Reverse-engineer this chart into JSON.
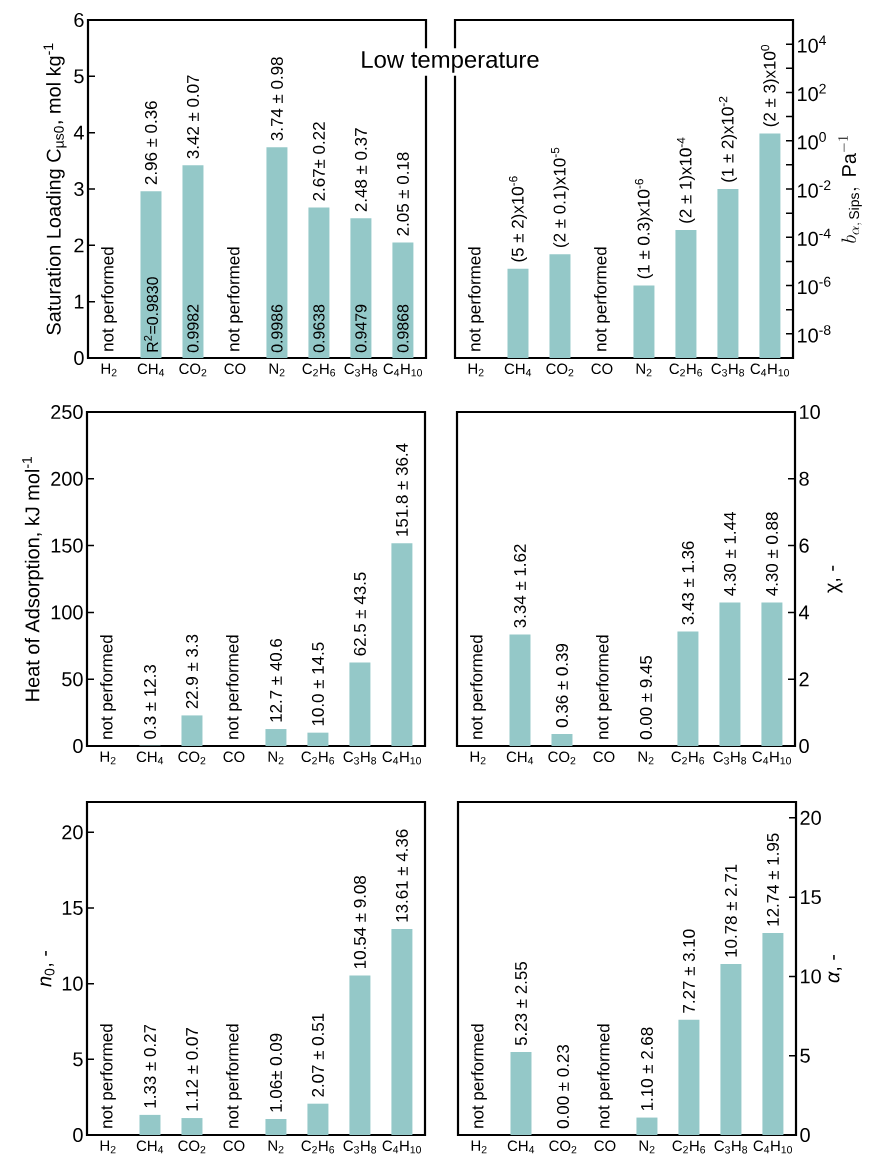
{
  "chart_data": [
    {
      "type": "bar",
      "title": "Low temperature",
      "categories": [
        "H$_{2}$",
        "CH$_{4}$",
        "CO$_{2}$",
        "CO",
        "N$_{2}$",
        "C$_{2}$H$_{6}$",
        "C$_{3}$H$_{8}$",
        "C$_{4}$H$_{10}$"
      ],
      "series": [
        {
          "color": "#94c8c8",
          "values": [
            null,
            2.96,
            3.42,
            null,
            3.74,
            2.67,
            2.48,
            2.05
          ],
          "value_labels": [
            "not performed",
            "2.96 ± 0.36",
            "3.42 ± 0.07",
            "not performed",
            "3.74 ± 0.98",
            "2.67± 0.22",
            "2.48 ± 0.37",
            "2.05 ± 0.18"
          ]
        }
      ],
      "ylim": [
        0,
        6
      ],
      "yticks": [
        0,
        1,
        2,
        3,
        4,
        5,
        6
      ],
      "ylabel": "Saturation Loading C$_{µs0}$, mol kg$^{-1}$",
      "annotations": [
        {
          "text": "R$^{2}$=0.9830",
          "x": "CH$_{4}$",
          "y": 0
        },
        {
          "text": "0.9982",
          "x": "CO$_{2}$",
          "y": 0
        },
        {
          "text": "0.9986",
          "x": "N$_{2}$",
          "y": 0
        },
        {
          "text": "0.9638",
          "x": "C$_{2}$H$_{6}$",
          "y": 0
        },
        {
          "text": "0.9479",
          "x": "C$_{3}$H$_{8}$",
          "y": 0
        },
        {
          "text": "0.9868",
          "x": "C$_{4}$H$_{10}$",
          "y": 0
        }
      ]
    },
    {
      "type": "bar",
      "categories": [
        "H$_{2}$",
        "CH$_{4}$",
        "CO$_{2}$",
        "CO",
        "N$_{2}$",
        "C$_{2}$H$_{6}$",
        "C$_{3}$H$_{8}$",
        "C$_{4}$H$_{10}$"
      ],
      "series": [
        {
          "color": "#94c8c8",
          "axis": "y2",
          "values": [
            null,
            5e-06,
            2e-05,
            null,
            1e-06,
            0.0002,
            0.01,
            2
          ],
          "value_labels": [
            "not performed",
            "(5 ± 2)x10$^{-6}$",
            "(2 ± 0.1)x10$^{-5}$",
            "not performed",
            "(1 ± 0.3)x10$^{-6}$",
            "(2 ± 1)x10$^{-4}$",
            "(1 ± 2)x10$^{-2}$",
            "(2 ± 3)x10$^{0}$"
          ]
        }
      ],
      "log": "y2",
      "y2lim": [
        1e-09,
        100000
      ],
      "y2ticks": [
        {
          "value": 1e-08,
          "label": "10$^{-8}$"
        },
        {
          "value": 1e-06,
          "label": "10$^{-6}$"
        },
        {
          "value": 0.0001,
          "label": "10$^{-4}$"
        },
        {
          "value": 0.01,
          "label": "10$^{-2}$"
        },
        {
          "value": 1,
          "label": "10$^{0}$"
        },
        {
          "value": 100,
          "label": "10$^{2}$"
        },
        {
          "value": 10000,
          "label": "10$^{4}$"
        },
        {
          "value": 1e-07,
          "label": null
        },
        {
          "value": 1e-05,
          "label": null
        },
        {
          "value": 0.001,
          "label": null
        },
        {
          "value": 0.1,
          "label": null
        },
        {
          "value": 10,
          "label": null
        },
        {
          "value": 1000,
          "label": null
        }
      ],
      "y2label": "b_{\\alpha,\\,\\mathrm{Sips}},\\ \\mathrm{Pa}^{-1}"
    },
    {
      "type": "bar",
      "categories": [
        "H$_{2}$",
        "CH$_{4}$",
        "CO$_{2}$",
        "CO",
        "N$_{2}$",
        "C$_{2}$H$_{6}$",
        "C$_{3}$H$_{8}$",
        "C$_{4}$H$_{10}$"
      ],
      "series": [
        {
          "color": "#94c8c8",
          "values": [
            null,
            0.3,
            22.9,
            null,
            12.7,
            10.0,
            62.5,
            151.8
          ],
          "value_labels": [
            "not performed",
            "0.3 ± 12.3",
            "22.9 ± 3.3",
            "not performed",
            "12.7 ± 40.6",
            "10.0 ± 14.5",
            "62.5 ± 43.5",
            "151.8 ± 36.4"
          ]
        }
      ],
      "ylim": [
        0,
        250
      ],
      "yticks": [
        0,
        50,
        100,
        150,
        200,
        250
      ],
      "ylabel": "Heat of Adsorption, kJ mol$^{-1}$"
    },
    {
      "type": "bar",
      "categories": [
        "H$_{2}$",
        "CH$_{4}$",
        "CO$_{2}$",
        "CO",
        "N$_{2}$",
        "C$_{2}$H$_{6}$",
        "C$_{3}$H$_{8}$",
        "C$_{4}$H$_{10}$"
      ],
      "series": [
        {
          "color": "#94c8c8",
          "axis": "y2",
          "values": [
            null,
            3.34,
            0.36,
            null,
            0.0,
            3.43,
            4.3,
            4.3
          ],
          "value_labels": [
            "not performed",
            "3.34 ± 1.62",
            "0.36 ± 0.39",
            "not performed",
            "0.00 ± 9.45",
            "3.43 ± 1.36",
            "4.30 ± 1.44",
            "4.30 ± 0.88"
          ]
        }
      ],
      "y2lim": [
        0,
        10
      ],
      "y2ticks": [
        0,
        2,
        4,
        6,
        8,
        10
      ],
      "y2label": "χ, -"
    },
    {
      "type": "bar",
      "categories": [
        "H$_{2}$",
        "CH$_{4}$",
        "CO$_{2}$",
        "CO",
        "N$_{2}$",
        "C$_{2}$H$_{6}$",
        "C$_{3}$H$_{8}$",
        "C$_{4}$H$_{10}$"
      ],
      "series": [
        {
          "color": "#94c8c8",
          "values": [
            null,
            1.33,
            1.12,
            null,
            1.06,
            2.07,
            10.54,
            13.61
          ],
          "value_labels": [
            "not performed",
            "1.33 ± 0.27",
            "1.12 ± 0.07",
            "not performed",
            "1.06± 0.09",
            "2.07 ± 0.51",
            "10.54 ± 9.08",
            "13.61 ± 4.36"
          ]
        }
      ],
      "ylim": [
        0,
        22
      ],
      "yticks": [
        0,
        5,
        10,
        15,
        20
      ],
      "ylabel": "*n*$_{0}$, -"
    },
    {
      "type": "bar",
      "categories": [
        "H$_{2}$",
        "CH$_{4}$",
        "CO$_{2}$",
        "CO",
        "N$_{2}$",
        "C$_{2}$H$_{6}$",
        "C$_{3}$H$_{8}$",
        "C$_{4}$H$_{10}$"
      ],
      "series": [
        {
          "color": "#94c8c8",
          "axis": "y2",
          "values": [
            null,
            5.23,
            0.0,
            null,
            1.1,
            7.27,
            10.78,
            12.74
          ],
          "value_labels": [
            "not performed",
            "5.23 ± 2.55",
            "0.00 ± 0.23",
            "not performed",
            "1.10 ± 2.68",
            "7.27 ± 3.10",
            "10.78 ± 2.71",
            "12.74 ± 1.95"
          ]
        }
      ],
      "y2lim": [
        0,
        21
      ],
      "y2ticks": [
        0,
        5,
        10,
        15,
        20
      ],
      "y2label": "*α*, -"
    }
  ]
}
